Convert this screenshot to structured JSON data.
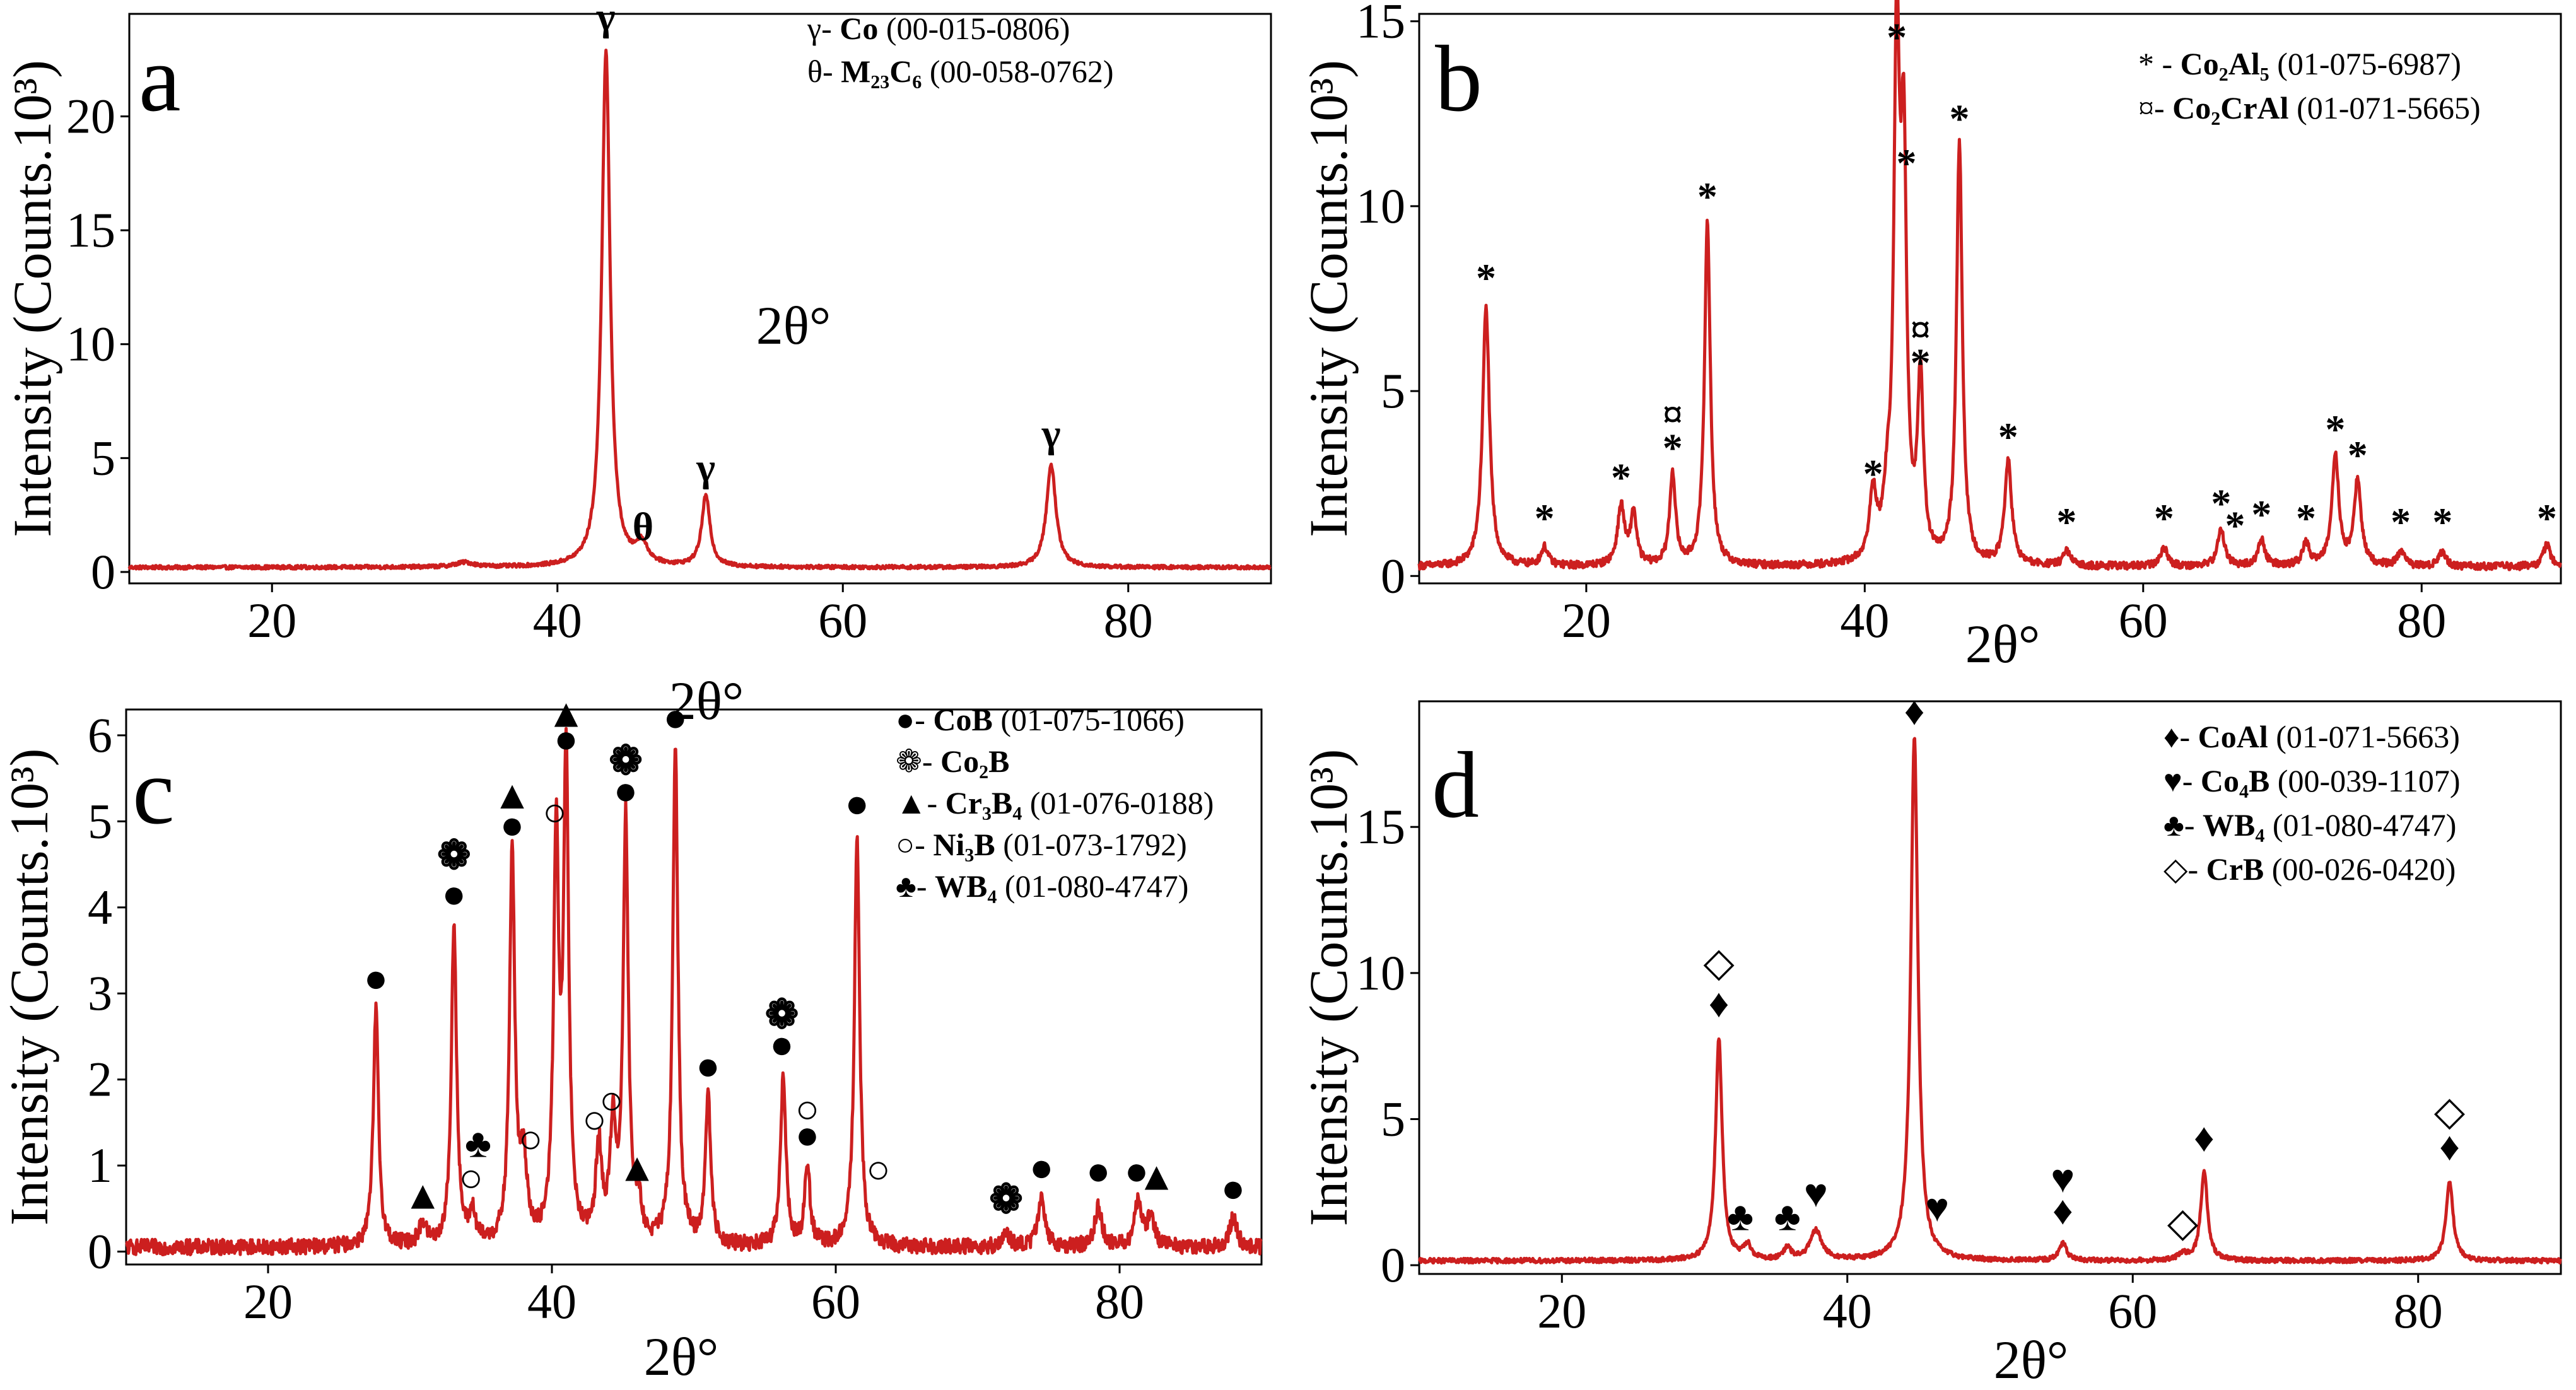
{
  "colors": {
    "trace": "#cc1f1f",
    "axis": "#000000",
    "background": "#ffffff"
  },
  "chart_data": [
    {
      "type": "line",
      "panel": "a",
      "xlabel": "2θ°",
      "ylabel": "Intensity (Counts.10³)",
      "annotations": [
        "2θ°"
      ],
      "xlim": [
        10,
        90
      ],
      "ylim": [
        -0.5,
        24.5
      ],
      "xticks": [
        20,
        40,
        60,
        80
      ],
      "yticks": [
        0,
        5,
        10,
        15,
        20
      ],
      "baseline": 0.2,
      "noise": 0.08,
      "peaks": [
        {
          "x": 43.4,
          "y": 22.6,
          "w": 0.35
        },
        {
          "x": 45.9,
          "y": 0.9,
          "w": 0.5
        },
        {
          "x": 50.4,
          "y": 3.1,
          "w": 0.35
        },
        {
          "x": 74.6,
          "y": 4.5,
          "w": 0.4
        },
        {
          "x": 33.5,
          "y": 0.2,
          "w": 0.8
        }
      ],
      "markers": [
        {
          "x": 43.4,
          "y": 23.8,
          "label": "γ"
        },
        {
          "x": 46.0,
          "y": 1.4,
          "label": "θ"
        },
        {
          "x": 50.4,
          "y": 4.0,
          "label": "γ"
        },
        {
          "x": 74.6,
          "y": 5.5,
          "label": "γ"
        }
      ],
      "legend": [
        {
          "symbol": "γ-",
          "phase": "Co",
          "card": "(00-015-0806)"
        },
        {
          "symbol": "θ-",
          "phase": "M₂₃C₆",
          "card": "(00-058-0762)"
        }
      ]
    },
    {
      "type": "line",
      "panel": "b",
      "xlabel": "2θ°",
      "ylabel": "Intensity (Counts.10³)",
      "annotations": [],
      "xlim": [
        8,
        90
      ],
      "ylim": [
        -0.2,
        15.2
      ],
      "xticks": [
        20,
        40,
        60,
        80
      ],
      "yticks": [
        0,
        5,
        10,
        15
      ],
      "baseline": 0.25,
      "noise": 0.1,
      "peaks": [
        {
          "x": 12.8,
          "y": 7.0,
          "w": 0.3
        },
        {
          "x": 17.0,
          "y": 0.5,
          "w": 0.3
        },
        {
          "x": 22.5,
          "y": 1.6,
          "w": 0.3
        },
        {
          "x": 23.4,
          "y": 1.4,
          "w": 0.25
        },
        {
          "x": 26.2,
          "y": 2.5,
          "w": 0.25
        },
        {
          "x": 28.7,
          "y": 9.3,
          "w": 0.25
        },
        {
          "x": 40.6,
          "y": 1.8,
          "w": 0.3
        },
        {
          "x": 41.6,
          "y": 1.2,
          "w": 0.3
        },
        {
          "x": 42.3,
          "y": 13.6,
          "w": 0.25
        },
        {
          "x": 42.8,
          "y": 10.2,
          "w": 0.25
        },
        {
          "x": 44.0,
          "y": 4.8,
          "w": 0.25
        },
        {
          "x": 46.8,
          "y": 11.4,
          "w": 0.25
        },
        {
          "x": 50.3,
          "y": 2.8,
          "w": 0.3
        },
        {
          "x": 54.5,
          "y": 0.4,
          "w": 0.3
        },
        {
          "x": 61.5,
          "y": 0.5,
          "w": 0.3
        },
        {
          "x": 65.6,
          "y": 1.0,
          "w": 0.3
        },
        {
          "x": 68.5,
          "y": 0.7,
          "w": 0.3
        },
        {
          "x": 71.7,
          "y": 0.6,
          "w": 0.3
        },
        {
          "x": 73.8,
          "y": 3.0,
          "w": 0.3
        },
        {
          "x": 75.4,
          "y": 2.3,
          "w": 0.3
        },
        {
          "x": 78.5,
          "y": 0.4,
          "w": 0.3
        },
        {
          "x": 81.5,
          "y": 0.4,
          "w": 0.3
        },
        {
          "x": 89.0,
          "y": 0.6,
          "w": 0.3
        }
      ],
      "markers": [
        {
          "x": 12.8,
          "y": 7.7,
          "label": "*"
        },
        {
          "x": 17.0,
          "y": 1.2,
          "label": "*"
        },
        {
          "x": 22.5,
          "y": 2.3,
          "label": "*"
        },
        {
          "x": 26.2,
          "y": 3.1,
          "label": "*"
        },
        {
          "x": 26.2,
          "y": 4.0,
          "label": "¤"
        },
        {
          "x": 28.7,
          "y": 9.9,
          "label": "*"
        },
        {
          "x": 40.6,
          "y": 2.4,
          "label": "*"
        },
        {
          "x": 42.3,
          "y": 14.2,
          "label": "*"
        },
        {
          "x": 43.0,
          "y": 10.8,
          "label": "*"
        },
        {
          "x": 44.0,
          "y": 5.4,
          "label": "*"
        },
        {
          "x": 44.0,
          "y": 6.3,
          "label": "¤"
        },
        {
          "x": 46.8,
          "y": 12.0,
          "label": "*"
        },
        {
          "x": 50.3,
          "y": 3.4,
          "label": "*"
        },
        {
          "x": 54.5,
          "y": 1.1,
          "label": "*"
        },
        {
          "x": 61.5,
          "y": 1.2,
          "label": "*"
        },
        {
          "x": 65.6,
          "y": 1.6,
          "label": "*"
        },
        {
          "x": 66.6,
          "y": 1.0,
          "label": "*"
        },
        {
          "x": 68.5,
          "y": 1.3,
          "label": "*"
        },
        {
          "x": 71.7,
          "y": 1.2,
          "label": "*"
        },
        {
          "x": 73.8,
          "y": 3.6,
          "label": "*"
        },
        {
          "x": 75.4,
          "y": 2.9,
          "label": "*"
        },
        {
          "x": 78.5,
          "y": 1.1,
          "label": "*"
        },
        {
          "x": 81.5,
          "y": 1.1,
          "label": "*"
        },
        {
          "x": 89.0,
          "y": 1.2,
          "label": "*"
        }
      ],
      "legend": [
        {
          "symbol": "* -",
          "phase": "Co₂Al₅",
          "card": "(01-075-6987)"
        },
        {
          "symbol": "¤-",
          "phase": "Co₂CrAl",
          "card": "(01-071-5665)"
        }
      ]
    },
    {
      "type": "line",
      "panel": "c",
      "xlabel": "2θ°",
      "ylabel": "Intensity (Counts.10³)",
      "annotations": [],
      "xlim": [
        10,
        90
      ],
      "ylim": [
        -0.15,
        6.3
      ],
      "xticks": [
        20,
        40,
        60,
        80
      ],
      "yticks": [
        0,
        1,
        2,
        3,
        4,
        5,
        6
      ],
      "baseline": 0.05,
      "noise": 0.09,
      "peaks": [
        {
          "x": 27.6,
          "y": 2.75,
          "w": 0.22
        },
        {
          "x": 30.9,
          "y": 0.25,
          "w": 0.3
        },
        {
          "x": 33.1,
          "y": 3.75,
          "w": 0.22
        },
        {
          "x": 34.4,
          "y": 0.35,
          "w": 0.25
        },
        {
          "x": 37.2,
          "y": 4.55,
          "w": 0.22
        },
        {
          "x": 38.0,
          "y": 0.9,
          "w": 0.3
        },
        {
          "x": 40.3,
          "y": 4.6,
          "w": 0.22
        },
        {
          "x": 41.0,
          "y": 5.5,
          "w": 0.22
        },
        {
          "x": 43.3,
          "y": 1.1,
          "w": 0.25
        },
        {
          "x": 44.3,
          "y": 1.3,
          "w": 0.25
        },
        {
          "x": 45.2,
          "y": 4.9,
          "w": 0.22
        },
        {
          "x": 46.1,
          "y": 0.4,
          "w": 0.25
        },
        {
          "x": 48.7,
          "y": 5.8,
          "w": 0.22
        },
        {
          "x": 51.0,
          "y": 1.75,
          "w": 0.22
        },
        {
          "x": 56.3,
          "y": 2.0,
          "w": 0.22
        },
        {
          "x": 58.0,
          "y": 0.95,
          "w": 0.22
        },
        {
          "x": 61.5,
          "y": 4.8,
          "w": 0.22
        },
        {
          "x": 72.0,
          "y": 0.15,
          "w": 0.3
        },
        {
          "x": 74.5,
          "y": 0.55,
          "w": 0.3
        },
        {
          "x": 78.5,
          "y": 0.45,
          "w": 0.3
        },
        {
          "x": 81.3,
          "y": 0.5,
          "w": 0.3
        },
        {
          "x": 82.2,
          "y": 0.35,
          "w": 0.3
        },
        {
          "x": 88.0,
          "y": 0.35,
          "w": 0.3
        }
      ],
      "markers": [
        {
          "x": 27.6,
          "y": 3.02,
          "label": "●"
        },
        {
          "x": 30.9,
          "y": 0.5,
          "label": "▲"
        },
        {
          "x": 33.1,
          "y": 4.0,
          "label": "●"
        },
        {
          "x": 33.1,
          "y": 4.45,
          "label": "❁"
        },
        {
          "x": 34.3,
          "y": 0.7,
          "label": "○"
        },
        {
          "x": 34.8,
          "y": 1.1,
          "label": "♣"
        },
        {
          "x": 37.2,
          "y": 4.8,
          "label": "●"
        },
        {
          "x": 37.2,
          "y": 5.15,
          "label": "▲"
        },
        {
          "x": 38.5,
          "y": 1.15,
          "label": "○"
        },
        {
          "x": 40.2,
          "y": 4.95,
          "label": "○"
        },
        {
          "x": 41.0,
          "y": 5.8,
          "label": "●"
        },
        {
          "x": 41.0,
          "y": 6.1,
          "label": "▲"
        },
        {
          "x": 43.0,
          "y": 1.38,
          "label": "○"
        },
        {
          "x": 44.2,
          "y": 1.6,
          "label": "○"
        },
        {
          "x": 45.2,
          "y": 5.2,
          "label": "●"
        },
        {
          "x": 45.2,
          "y": 5.55,
          "label": "❁"
        },
        {
          "x": 46.0,
          "y": 0.82,
          "label": "▲"
        },
        {
          "x": 48.7,
          "y": 6.05,
          "label": "●"
        },
        {
          "x": 51.0,
          "y": 2.0,
          "label": "●"
        },
        {
          "x": 56.2,
          "y": 2.25,
          "label": "●"
        },
        {
          "x": 56.2,
          "y": 2.6,
          "label": "❁"
        },
        {
          "x": 58.0,
          "y": 1.2,
          "label": "●"
        },
        {
          "x": 58.0,
          "y": 1.5,
          "label": "○"
        },
        {
          "x": 61.5,
          "y": 5.05,
          "label": "●"
        },
        {
          "x": 63.0,
          "y": 0.8,
          "label": "○"
        },
        {
          "x": 72.0,
          "y": 0.45,
          "label": "❁"
        },
        {
          "x": 74.5,
          "y": 0.82,
          "label": "●"
        },
        {
          "x": 78.5,
          "y": 0.78,
          "label": "●"
        },
        {
          "x": 81.2,
          "y": 0.78,
          "label": "●"
        },
        {
          "x": 82.6,
          "y": 0.72,
          "label": "▲"
        },
        {
          "x": 88.0,
          "y": 0.58,
          "label": "●"
        }
      ],
      "legend": [
        {
          "symbol": "●-",
          "phase": "CoB",
          "card": "(01-075-1066)"
        },
        {
          "symbol": "❁-",
          "phase": "Co₂B",
          "card": ""
        },
        {
          "symbol": "▲-",
          "phase": "Cr₃B₄",
          "card": "(01-076-0188)"
        },
        {
          "symbol": "○-",
          "phase": "Ni₃B",
          "card": "(01-073-1792)"
        },
        {
          "symbol": "♣-",
          "phase": "WB₄",
          "card": "(01-080-4747)"
        }
      ]
    },
    {
      "type": "line",
      "panel": "d",
      "xlabel": "2θ°",
      "ylabel": "Intensity (Counts.10³)",
      "annotations": [],
      "xlim": [
        10,
        90
      ],
      "ylim": [
        -0.3,
        19.3
      ],
      "xticks": [
        20,
        40,
        60,
        80
      ],
      "yticks": [
        0,
        5,
        10,
        15
      ],
      "baseline": 0.15,
      "noise": 0.08,
      "peaks": [
        {
          "x": 31.0,
          "y": 7.6,
          "w": 0.28
        },
        {
          "x": 33.0,
          "y": 0.5,
          "w": 0.3
        },
        {
          "x": 35.8,
          "y": 0.4,
          "w": 0.3
        },
        {
          "x": 37.8,
          "y": 1.0,
          "w": 0.5
        },
        {
          "x": 44.7,
          "y": 17.9,
          "w": 0.3
        },
        {
          "x": 55.1,
          "y": 0.6,
          "w": 0.3
        },
        {
          "x": 63.5,
          "y": 0.2,
          "w": 0.4
        },
        {
          "x": 65.0,
          "y": 3.1,
          "w": 0.28
        },
        {
          "x": 82.2,
          "y": 2.7,
          "w": 0.3
        }
      ],
      "markers": [
        {
          "x": 31.0,
          "y": 8.5,
          "label": "♦"
        },
        {
          "x": 31.0,
          "y": 9.9,
          "label": "◇"
        },
        {
          "x": 32.5,
          "y": 1.2,
          "label": "♣"
        },
        {
          "x": 35.8,
          "y": 1.2,
          "label": "♣"
        },
        {
          "x": 37.8,
          "y": 2.0,
          "label": "♥"
        },
        {
          "x": 44.7,
          "y": 18.5,
          "label": "♦"
        },
        {
          "x": 46.3,
          "y": 1.5,
          "label": "♥"
        },
        {
          "x": 55.1,
          "y": 1.4,
          "label": "♦"
        },
        {
          "x": 55.1,
          "y": 2.5,
          "label": "♥"
        },
        {
          "x": 63.5,
          "y": 1.0,
          "label": "◇"
        },
        {
          "x": 65.0,
          "y": 3.9,
          "label": "♦"
        },
        {
          "x": 82.2,
          "y": 3.6,
          "label": "♦"
        },
        {
          "x": 82.2,
          "y": 4.8,
          "label": "◇"
        }
      ],
      "legend": [
        {
          "symbol": "♦-",
          "phase": "CoAl",
          "card": "(01-071-5663)"
        },
        {
          "symbol": "♥-",
          "phase": "Co₄B",
          "card": "(00-039-1107)"
        },
        {
          "symbol": "♣-",
          "phase": "WB₄",
          "card": "(01-080-4747)"
        },
        {
          "symbol": "◇-",
          "phase": "CrB",
          "card": "(00-026-0420)"
        }
      ]
    }
  ]
}
